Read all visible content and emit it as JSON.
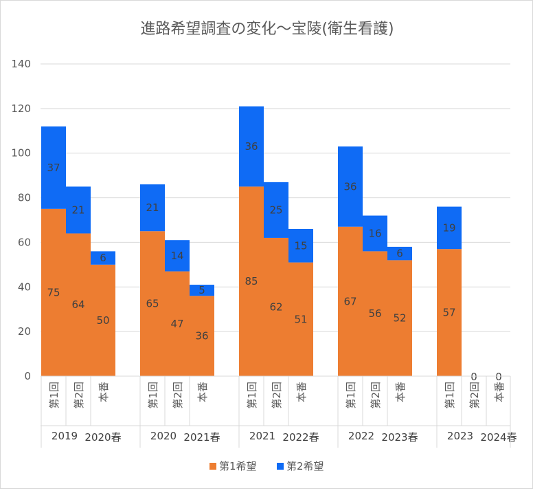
{
  "chart_data": {
    "type": "bar",
    "stacked": true,
    "title": "進路希望調査の変化～宝陵(衛生看護)",
    "xlabel": "",
    "ylabel": "",
    "ylim": [
      0,
      140
    ],
    "yticks": [
      0,
      20,
      40,
      60,
      80,
      100,
      120,
      140
    ],
    "grid": true,
    "legend_position": "bottom",
    "colors": {
      "series1": "#ED7D31",
      "series2": "#0F6BF5",
      "grid": "#d9d9d9",
      "axis_text": "#595959"
    },
    "groups": [
      {
        "year": "2019",
        "season": "2020春",
        "categories": [
          "第1回",
          "第2回",
          "本番"
        ]
      },
      {
        "year": "2020",
        "season": "2021春",
        "categories": [
          "第1回",
          "第2回",
          "本番"
        ]
      },
      {
        "year": "2021",
        "season": "2022春",
        "categories": [
          "第1回",
          "第2回",
          "本番"
        ]
      },
      {
        "year": "2022",
        "season": "2023春",
        "categories": [
          "第1回",
          "第2回",
          "本番"
        ]
      },
      {
        "year": "2023",
        "season": "2024春",
        "categories": [
          "第1回",
          "第2回",
          "本番"
        ]
      }
    ],
    "series": [
      {
        "name": "第1希望",
        "values": [
          75,
          64,
          50,
          65,
          47,
          36,
          85,
          62,
          51,
          67,
          56,
          52,
          57,
          0,
          0
        ]
      },
      {
        "name": "第2希望",
        "values": [
          37,
          21,
          6,
          21,
          14,
          5,
          36,
          25,
          15,
          36,
          16,
          6,
          19,
          0,
          0
        ]
      }
    ]
  }
}
